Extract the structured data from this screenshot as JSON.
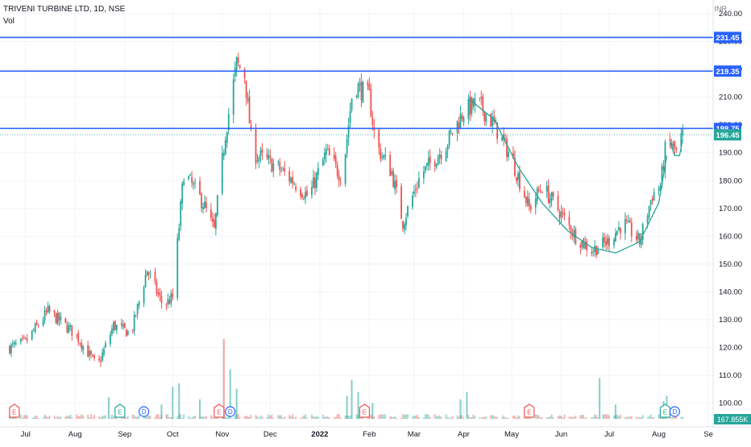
{
  "header": {
    "symbol_title": "TRIVENI TURBINE LTD, 1D, NSE",
    "volume_label": "Vol",
    "currency": "INR"
  },
  "chart_data": {
    "type": "candlestick",
    "ylim": [
      95,
      242
    ],
    "y_ticks": [
      100,
      110,
      120,
      130,
      140,
      150,
      160,
      170,
      180,
      190,
      200,
      210,
      220,
      230,
      240
    ],
    "y_tick_labels": [
      "100.00",
      "110.00",
      "120.00",
      "130.00",
      "140.00",
      "150.00",
      "160.00",
      "170.00",
      "180.00",
      "190.00",
      "200.00",
      "210.00",
      "220.00",
      "230.00",
      "240.00"
    ],
    "x_ticks": [
      "Jul",
      "Aug",
      "Sep",
      "Oct",
      "Nov",
      "Dec",
      "2022",
      "Feb",
      "Mar",
      "Apr",
      "May",
      "Jun",
      "Jul",
      "Aug",
      "Se"
    ],
    "price_path": [
      [
        "2021-06-21",
        120
      ],
      [
        "2021-07-01",
        122
      ],
      [
        "2021-07-15",
        133
      ],
      [
        "2021-08-01",
        125
      ],
      [
        "2021-08-15",
        113
      ],
      [
        "2021-08-25",
        128
      ],
      [
        "2021-09-05",
        125
      ],
      [
        "2021-09-15",
        148
      ],
      [
        "2021-09-25",
        135
      ],
      [
        "2021-10-01",
        138
      ],
      [
        "2021-10-08",
        183
      ],
      [
        "2021-10-20",
        172
      ],
      [
        "2021-10-27",
        162
      ],
      [
        "2021-11-03",
        197
      ],
      [
        "2021-11-10",
        222
      ],
      [
        "2021-11-15",
        218
      ],
      [
        "2021-11-20",
        190
      ],
      [
        "2021-12-05",
        185
      ],
      [
        "2021-12-15",
        180
      ],
      [
        "2021-12-25",
        174
      ],
      [
        "2022-01-05",
        190
      ],
      [
        "2022-01-15",
        181
      ],
      [
        "2022-01-22",
        215
      ],
      [
        "2022-02-01",
        210
      ],
      [
        "2022-02-05",
        193
      ],
      [
        "2022-02-15",
        183
      ],
      [
        "2022-02-22",
        165
      ],
      [
        "2022-03-05",
        182
      ],
      [
        "2022-03-20",
        192
      ],
      [
        "2022-04-01",
        205
      ],
      [
        "2022-04-10",
        208
      ],
      [
        "2022-04-20",
        200
      ],
      [
        "2022-05-01",
        188
      ],
      [
        "2022-05-12",
        170
      ],
      [
        "2022-05-20",
        178
      ],
      [
        "2022-06-01",
        168
      ],
      [
        "2022-06-10",
        160
      ],
      [
        "2022-06-20",
        155
      ],
      [
        "2022-06-30",
        158
      ],
      [
        "2022-07-10",
        165
      ],
      [
        "2022-07-20",
        158
      ],
      [
        "2022-07-28",
        175
      ],
      [
        "2022-08-02",
        178
      ],
      [
        "2022-08-06",
        195
      ],
      [
        "2022-08-12",
        190
      ],
      [
        "2022-08-16",
        196.45
      ]
    ],
    "volume_spikes": [
      [
        "2021-08-22",
        12
      ],
      [
        "2021-09-24",
        8
      ],
      [
        "2021-10-01",
        18
      ],
      [
        "2021-10-05",
        20
      ],
      [
        "2021-10-18",
        11
      ],
      [
        "2021-11-02",
        45
      ],
      [
        "2021-11-06",
        28
      ],
      [
        "2021-11-10",
        17
      ],
      [
        "2022-01-18",
        13
      ],
      [
        "2022-01-21",
        22
      ],
      [
        "2022-01-25",
        15
      ],
      [
        "2022-02-03",
        9
      ],
      [
        "2022-03-30",
        11
      ],
      [
        "2022-04-03",
        15
      ],
      [
        "2022-06-25",
        23
      ],
      [
        "2022-07-05",
        8
      ],
      [
        "2022-08-04",
        10
      ],
      [
        "2022-08-06",
        13
      ]
    ],
    "horizontal_lines": [
      {
        "value": 231.45,
        "label": "231.45",
        "color": "#2962ff"
      },
      {
        "value": 219.35,
        "label": "219.35",
        "color": "#2962ff"
      },
      {
        "value": 198.75,
        "label": "198.75",
        "color": "#2962ff"
      }
    ],
    "last_price": {
      "value": 196.45,
      "label": "196.45",
      "color": "#26a69a"
    },
    "volume_last": {
      "label": "167.855K",
      "color": "#26a69a"
    },
    "cup_curve": [
      [
        "2022-04-05",
        209
      ],
      [
        "2022-04-20",
        202
      ],
      [
        "2022-05-05",
        185
      ],
      [
        "2022-05-20",
        172
      ],
      [
        "2022-06-05",
        162
      ],
      [
        "2022-06-20",
        156
      ],
      [
        "2022-07-05",
        154
      ],
      [
        "2022-07-20",
        158
      ],
      [
        "2022-08-01",
        172
      ],
      [
        "2022-08-06",
        189
      ]
    ],
    "handle_curve": [
      [
        "2022-08-08",
        194
      ],
      [
        "2022-08-11",
        189
      ],
      [
        "2022-08-14",
        189
      ],
      [
        "2022-08-16",
        195
      ]
    ],
    "events": [
      {
        "date": "2021-06-24",
        "type": "E"
      },
      {
        "date": "2021-08-29",
        "type": "E"
      },
      {
        "date": "2021-09-13",
        "type": "D"
      },
      {
        "date": "2021-10-30",
        "type": "E"
      },
      {
        "date": "2021-11-06",
        "type": "D"
      },
      {
        "date": "2022-01-29",
        "type": "E"
      },
      {
        "date": "2022-05-12",
        "type": "E"
      },
      {
        "date": "2022-08-05",
        "type": "E"
      },
      {
        "date": "2022-08-11",
        "type": "D"
      }
    ],
    "colors": {
      "up": "#26a69a",
      "down": "#ef5350",
      "line": "#2962ff",
      "cup": "#26a69a"
    }
  }
}
